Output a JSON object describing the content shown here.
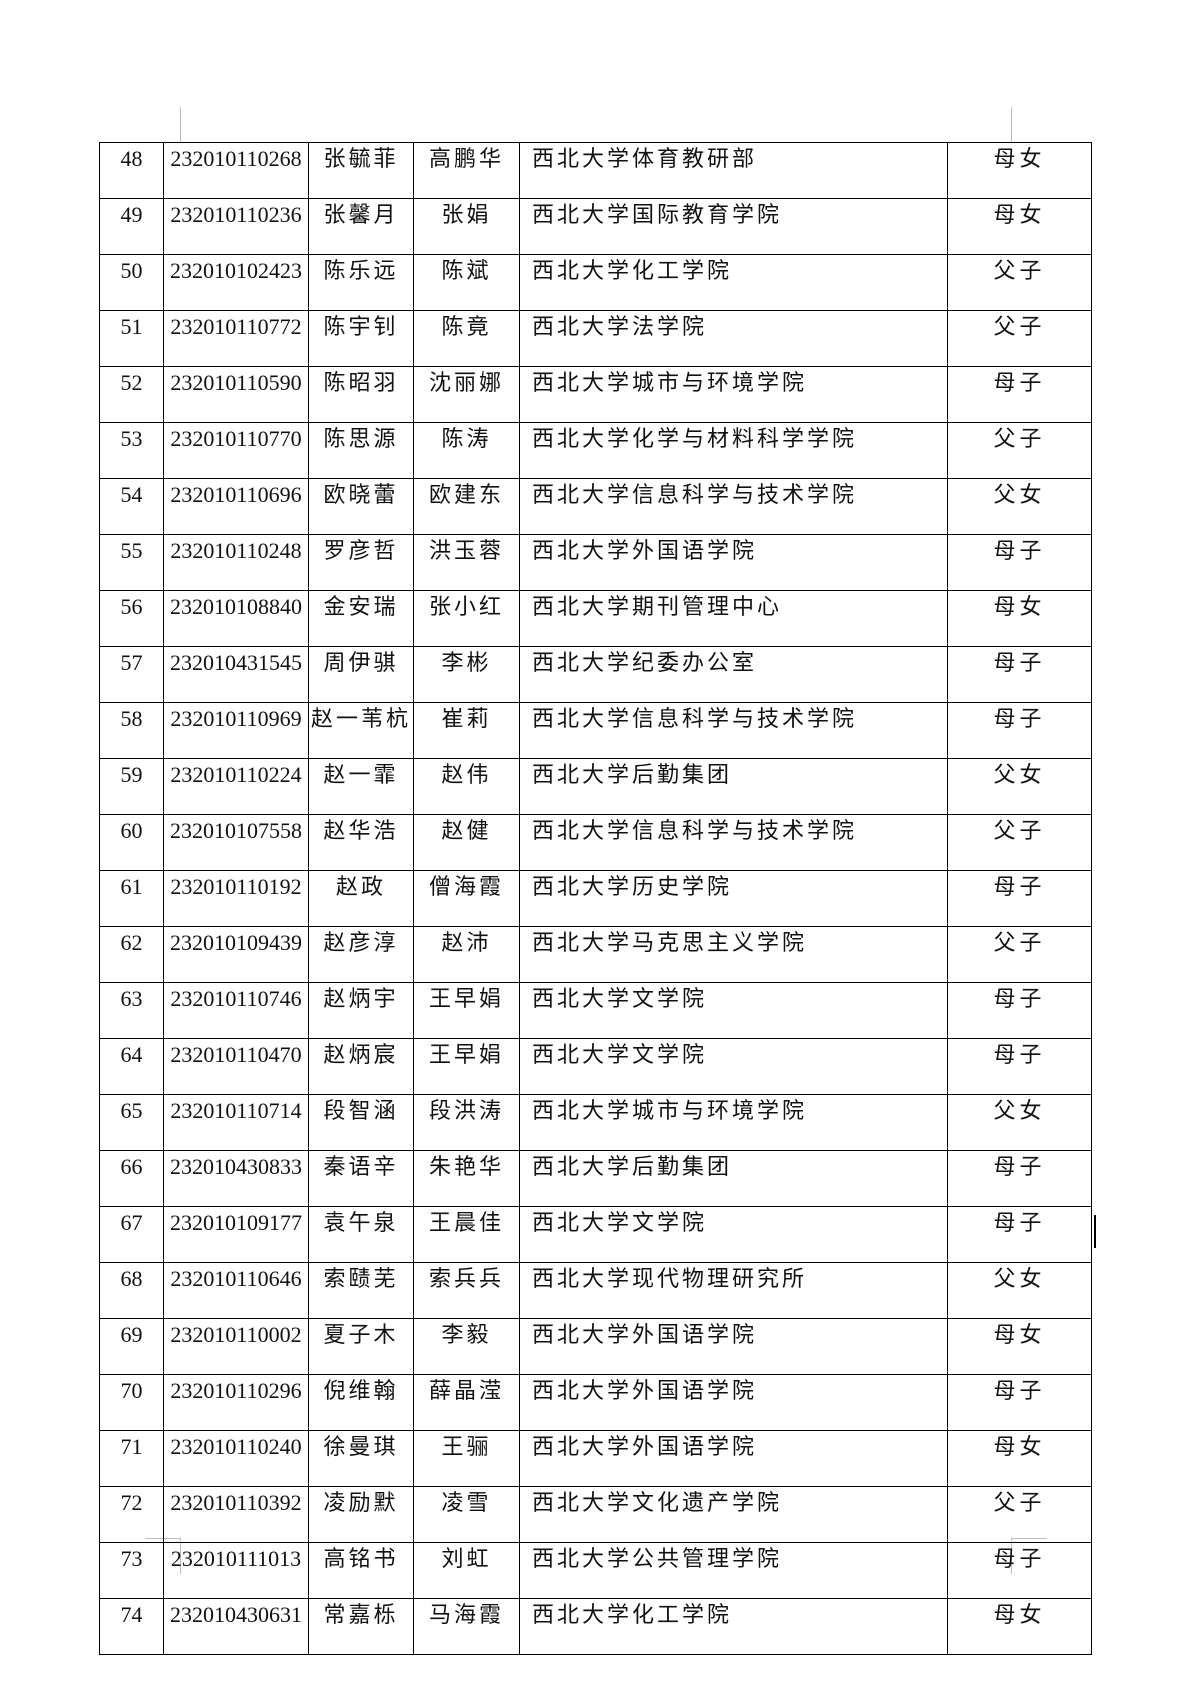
{
  "rows": [
    {
      "no": "48",
      "id": "232010110268",
      "student": "张毓菲",
      "parent": "高鹏华",
      "unit": "西北大学体育教研部",
      "relation": "母女"
    },
    {
      "no": "49",
      "id": "232010110236",
      "student": "张馨月",
      "parent": "张娟",
      "unit": "西北大学国际教育学院",
      "relation": "母女"
    },
    {
      "no": "50",
      "id": "232010102423",
      "student": "陈乐远",
      "parent": "陈斌",
      "unit": "西北大学化工学院",
      "relation": "父子"
    },
    {
      "no": "51",
      "id": "232010110772",
      "student": "陈宇钊",
      "parent": "陈竟",
      "unit": "西北大学法学院",
      "relation": "父子"
    },
    {
      "no": "52",
      "id": "232010110590",
      "student": "陈昭羽",
      "parent": "沈丽娜",
      "unit": "西北大学城市与环境学院",
      "relation": "母子"
    },
    {
      "no": "53",
      "id": "232010110770",
      "student": "陈思源",
      "parent": "陈涛",
      "unit": "西北大学化学与材料科学学院",
      "relation": "父子"
    },
    {
      "no": "54",
      "id": "232010110696",
      "student": "欧晓蕾",
      "parent": "欧建东",
      "unit": "西北大学信息科学与技术学院",
      "relation": "父女"
    },
    {
      "no": "55",
      "id": "232010110248",
      "student": "罗彦哲",
      "parent": "洪玉蓉",
      "unit": "西北大学外国语学院",
      "relation": "母子"
    },
    {
      "no": "56",
      "id": "232010108840",
      "student": "金安瑞",
      "parent": "张小红",
      "unit": "西北大学期刊管理中心",
      "relation": "母女"
    },
    {
      "no": "57",
      "id": "232010431545",
      "student": "周伊骐",
      "parent": "李彬",
      "unit": "西北大学纪委办公室",
      "relation": "母子"
    },
    {
      "no": "58",
      "id": "232010110969",
      "student": "赵一苇杭",
      "parent": "崔莉",
      "unit": "西北大学信息科学与技术学院",
      "relation": "母子"
    },
    {
      "no": "59",
      "id": "232010110224",
      "student": "赵一霏",
      "parent": "赵伟",
      "unit": "西北大学后勤集团",
      "relation": "父女"
    },
    {
      "no": "60",
      "id": "232010107558",
      "student": "赵华浩",
      "parent": "赵健",
      "unit": "西北大学信息科学与技术学院",
      "relation": "父子"
    },
    {
      "no": "61",
      "id": "232010110192",
      "student": "赵政",
      "parent": "僧海霞",
      "unit": "西北大学历史学院",
      "relation": "母子"
    },
    {
      "no": "62",
      "id": "232010109439",
      "student": "赵彦淳",
      "parent": "赵沛",
      "unit": "西北大学马克思主义学院",
      "relation": "父子"
    },
    {
      "no": "63",
      "id": "232010110746",
      "student": "赵炳宇",
      "parent": "王早娟",
      "unit": "西北大学文学院",
      "relation": "母子"
    },
    {
      "no": "64",
      "id": "232010110470",
      "student": "赵炳宸",
      "parent": "王早娟",
      "unit": "西北大学文学院",
      "relation": "母子"
    },
    {
      "no": "65",
      "id": "232010110714",
      "student": "段智涵",
      "parent": "段洪涛",
      "unit": "西北大学城市与环境学院",
      "relation": "父女"
    },
    {
      "no": "66",
      "id": "232010430833",
      "student": "秦语辛",
      "parent": "朱艳华",
      "unit": "西北大学后勤集团",
      "relation": "母子"
    },
    {
      "no": "67",
      "id": "232010109177",
      "student": "袁午泉",
      "parent": "王晨佳",
      "unit": "西北大学文学院",
      "relation": "母子"
    },
    {
      "no": "68",
      "id": "232010110646",
      "student": "索赜芜",
      "parent": "索兵兵",
      "unit": "西北大学现代物理研究所",
      "relation": "父女"
    },
    {
      "no": "69",
      "id": "232010110002",
      "student": "夏子木",
      "parent": "李毅",
      "unit": "西北大学外国语学院",
      "relation": "母女"
    },
    {
      "no": "70",
      "id": "232010110296",
      "student": "倪维翰",
      "parent": "薛晶滢",
      "unit": "西北大学外国语学院",
      "relation": "母子"
    },
    {
      "no": "71",
      "id": "232010110240",
      "student": "徐曼琪",
      "parent": "王骊",
      "unit": "西北大学外国语学院",
      "relation": "母女"
    },
    {
      "no": "72",
      "id": "232010110392",
      "student": "凌励默",
      "parent": "凌雪",
      "unit": "西北大学文化遗产学院",
      "relation": "父子"
    },
    {
      "no": "73",
      "id": "232010111013",
      "student": "高铭书",
      "parent": "刘虹",
      "unit": "西北大学公共管理学院",
      "relation": "母子"
    },
    {
      "no": "74",
      "id": "232010430631",
      "student": "常嘉栎",
      "parent": "马海霞",
      "unit": "西北大学化工学院",
      "relation": "母女"
    }
  ]
}
